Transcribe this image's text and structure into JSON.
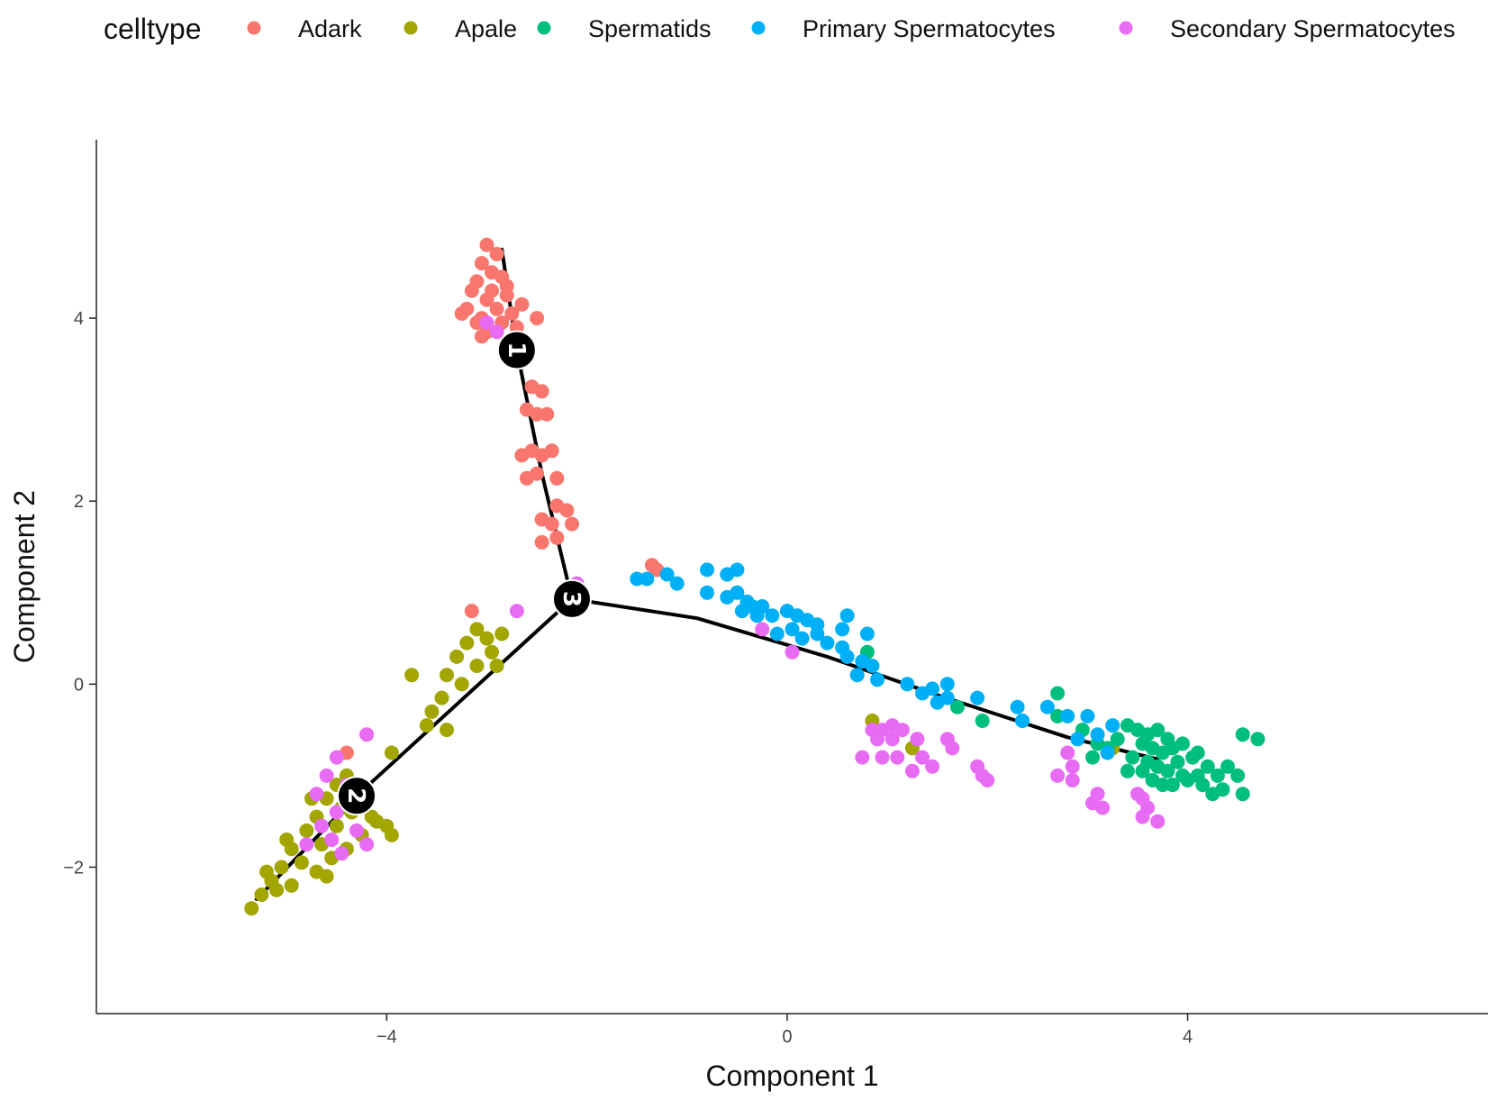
{
  "chart_data": {
    "type": "scatter",
    "title": "",
    "xlabel": "Component 1",
    "ylabel": "Component 2",
    "xlim": [
      -6.9,
      7.0
    ],
    "ylim": [
      -3.6,
      5.95
    ],
    "xticks": [
      -4,
      0,
      4
    ],
    "yticks": [
      -2,
      0,
      2,
      4
    ],
    "xtick_labels": [
      "−4",
      "0",
      "4"
    ],
    "ytick_labels": [
      "−2",
      "0",
      "2",
      "4"
    ],
    "grid": false,
    "legend": {
      "title": "celltype",
      "position": "top",
      "entries": [
        "Adark",
        "Apale",
        "Spermatids",
        "Primary Spermatocytes",
        "Secondary Spermatocytes"
      ]
    },
    "colors": {
      "Adark": "#F8766D",
      "Apale": "#A3A500",
      "Spermatids": "#00BF7D",
      "Primary Spermatocytes": "#00B0F6",
      "Secondary Spermatocytes": "#E76BF3"
    },
    "trajectory": {
      "nodes": [
        {
          "label": "1",
          "x": -2.7,
          "y": 3.65
        },
        {
          "label": "2",
          "x": -4.3,
          "y": -1.22
        },
        {
          "label": "3",
          "x": -2.15,
          "y": 0.93
        }
      ],
      "branches": [
        [
          [
            -2.85,
            4.75
          ],
          [
            -2.7,
            3.65
          ],
          [
            -2.45,
            2.3
          ],
          [
            -2.15,
            0.93
          ]
        ],
        [
          [
            -5.3,
            -2.35
          ],
          [
            -4.3,
            -1.22
          ],
          [
            -2.15,
            0.93
          ]
        ],
        [
          [
            -2.15,
            0.93
          ],
          [
            -0.9,
            0.72
          ],
          [
            0.4,
            0.3
          ],
          [
            1.5,
            -0.12
          ],
          [
            2.8,
            -0.58
          ],
          [
            3.7,
            -0.82
          ]
        ]
      ]
    },
    "series": [
      {
        "name": "Adark",
        "points": [
          [
            -3.0,
            4.8
          ],
          [
            -2.9,
            4.7
          ],
          [
            -3.05,
            4.6
          ],
          [
            -2.95,
            4.5
          ],
          [
            -3.1,
            4.4
          ],
          [
            -2.85,
            4.45
          ],
          [
            -3.15,
            4.3
          ],
          [
            -2.95,
            4.3
          ],
          [
            -3.0,
            4.2
          ],
          [
            -2.8,
            4.25
          ],
          [
            -3.2,
            4.1
          ],
          [
            -2.9,
            4.1
          ],
          [
            -2.75,
            4.05
          ],
          [
            -3.05,
            4.0
          ],
          [
            -2.65,
            4.15
          ],
          [
            -3.1,
            3.95
          ],
          [
            -2.85,
            3.95
          ],
          [
            -3.0,
            3.85
          ],
          [
            -2.7,
            3.9
          ],
          [
            -2.5,
            4.0
          ],
          [
            -3.25,
            4.05
          ],
          [
            -2.8,
            4.35
          ],
          [
            -3.05,
            3.8
          ],
          [
            -2.55,
            3.25
          ],
          [
            -2.45,
            3.2
          ],
          [
            -2.6,
            3.0
          ],
          [
            -2.5,
            2.95
          ],
          [
            -2.4,
            2.95
          ],
          [
            -2.55,
            2.55
          ],
          [
            -2.45,
            2.5
          ],
          [
            -2.65,
            2.5
          ],
          [
            -2.35,
            2.55
          ],
          [
            -2.5,
            2.3
          ],
          [
            -2.3,
            2.25
          ],
          [
            -2.6,
            2.25
          ],
          [
            -2.3,
            1.95
          ],
          [
            -2.2,
            1.9
          ],
          [
            -2.45,
            1.8
          ],
          [
            -2.35,
            1.75
          ],
          [
            -2.15,
            1.75
          ],
          [
            -2.3,
            1.6
          ],
          [
            -2.45,
            1.55
          ],
          [
            -1.3,
            1.25
          ],
          [
            -1.35,
            1.3
          ],
          [
            -3.15,
            0.8
          ],
          [
            -4.4,
            -0.75
          ]
        ]
      },
      {
        "name": "Apale",
        "points": [
          [
            -3.1,
            0.6
          ],
          [
            -3.0,
            0.5
          ],
          [
            -3.2,
            0.45
          ],
          [
            -2.85,
            0.55
          ],
          [
            -2.95,
            0.35
          ],
          [
            -3.1,
            0.2
          ],
          [
            -3.3,
            0.3
          ],
          [
            -2.9,
            0.2
          ],
          [
            -3.4,
            0.1
          ],
          [
            -3.75,
            0.1
          ],
          [
            -3.25,
            0.0
          ],
          [
            -3.45,
            -0.15
          ],
          [
            -3.55,
            -0.3
          ],
          [
            -3.4,
            -0.5
          ],
          [
            -3.6,
            -0.45
          ],
          [
            -3.95,
            -0.75
          ],
          [
            -4.4,
            -1.0
          ],
          [
            -4.5,
            -1.1
          ],
          [
            -4.2,
            -1.2
          ],
          [
            -4.6,
            -1.25
          ],
          [
            -4.35,
            -1.4
          ],
          [
            -4.7,
            -1.45
          ],
          [
            -4.1,
            -1.5
          ],
          [
            -4.5,
            -1.55
          ],
          [
            -4.8,
            -1.6
          ],
          [
            -4.25,
            -1.65
          ],
          [
            -4.65,
            -1.75
          ],
          [
            -4.95,
            -1.8
          ],
          [
            -4.4,
            -1.8
          ],
          [
            -4.85,
            -1.95
          ],
          [
            -5.05,
            -2.0
          ],
          [
            -4.7,
            -2.05
          ],
          [
            -5.15,
            -2.15
          ],
          [
            -4.95,
            -2.2
          ],
          [
            -5.25,
            -2.3
          ],
          [
            -5.35,
            -2.45
          ],
          [
            -5.1,
            -2.25
          ],
          [
            -4.55,
            -1.9
          ],
          [
            -4.15,
            -1.45
          ],
          [
            -4.0,
            -1.55
          ],
          [
            -3.95,
            -1.65
          ],
          [
            -4.75,
            -1.25
          ],
          [
            -5.0,
            -1.7
          ],
          [
            -4.3,
            -1.15
          ],
          [
            -4.6,
            -2.1
          ],
          [
            -5.2,
            -2.05
          ],
          [
            -4.45,
            -1.35
          ],
          [
            0.85,
            -0.4
          ],
          [
            1.25,
            -0.7
          ],
          [
            3.25,
            -0.7
          ]
        ]
      },
      {
        "name": "Spermatids",
        "points": [
          [
            3.4,
            -0.45
          ],
          [
            3.5,
            -0.5
          ],
          [
            3.6,
            -0.55
          ],
          [
            3.7,
            -0.5
          ],
          [
            3.8,
            -0.6
          ],
          [
            3.55,
            -0.65
          ],
          [
            3.65,
            -0.7
          ],
          [
            3.75,
            -0.75
          ],
          [
            3.85,
            -0.7
          ],
          [
            3.45,
            -0.8
          ],
          [
            3.6,
            -0.85
          ],
          [
            3.7,
            -0.9
          ],
          [
            3.8,
            -0.95
          ],
          [
            3.9,
            -0.85
          ],
          [
            3.95,
            -1.0
          ],
          [
            3.55,
            -0.95
          ],
          [
            3.65,
            -1.05
          ],
          [
            3.75,
            -1.1
          ],
          [
            3.85,
            -1.1
          ],
          [
            4.0,
            -1.05
          ],
          [
            4.1,
            -1.0
          ],
          [
            4.2,
            -0.9
          ],
          [
            4.15,
            -1.1
          ],
          [
            4.3,
            -1.0
          ],
          [
            4.35,
            -1.15
          ],
          [
            4.25,
            -1.2
          ],
          [
            4.05,
            -0.8
          ],
          [
            3.4,
            -0.95
          ],
          [
            3.3,
            -0.6
          ],
          [
            3.2,
            -0.7
          ],
          [
            4.55,
            -0.55
          ],
          [
            4.7,
            -0.6
          ],
          [
            4.5,
            -1.0
          ],
          [
            4.55,
            -1.2
          ],
          [
            4.4,
            -0.9
          ],
          [
            3.95,
            -0.65
          ],
          [
            4.1,
            -0.75
          ],
          [
            2.95,
            -0.5
          ],
          [
            3.1,
            -0.65
          ],
          [
            3.05,
            -0.8
          ],
          [
            2.7,
            -0.1
          ],
          [
            2.7,
            -0.35
          ],
          [
            2.35,
            -0.4
          ],
          [
            1.95,
            -0.4
          ],
          [
            1.7,
            -0.25
          ],
          [
            0.8,
            0.35
          ]
        ]
      },
      {
        "name": "Primary Spermatocytes",
        "points": [
          [
            -1.5,
            1.15
          ],
          [
            -1.4,
            1.15
          ],
          [
            -1.2,
            1.2
          ],
          [
            -1.1,
            1.1
          ],
          [
            -0.8,
            1.25
          ],
          [
            -0.6,
            1.2
          ],
          [
            -0.5,
            1.25
          ],
          [
            -0.8,
            1.0
          ],
          [
            -0.6,
            0.95
          ],
          [
            -0.5,
            1.0
          ],
          [
            -0.4,
            0.9
          ],
          [
            -0.45,
            0.8
          ],
          [
            -0.35,
            0.85
          ],
          [
            -0.25,
            0.85
          ],
          [
            -0.15,
            0.75
          ],
          [
            -0.3,
            0.75
          ],
          [
            0.0,
            0.8
          ],
          [
            0.1,
            0.75
          ],
          [
            0.2,
            0.7
          ],
          [
            0.3,
            0.65
          ],
          [
            0.05,
            0.6
          ],
          [
            -0.1,
            0.55
          ],
          [
            0.15,
            0.5
          ],
          [
            0.3,
            0.55
          ],
          [
            0.4,
            0.45
          ],
          [
            0.55,
            0.4
          ],
          [
            0.6,
            0.3
          ],
          [
            0.75,
            0.25
          ],
          [
            0.85,
            0.2
          ],
          [
            0.55,
            0.6
          ],
          [
            0.6,
            0.75
          ],
          [
            0.8,
            0.55
          ],
          [
            0.7,
            0.1
          ],
          [
            0.9,
            0.05
          ],
          [
            1.2,
            0.0
          ],
          [
            1.35,
            -0.1
          ],
          [
            1.45,
            -0.05
          ],
          [
            1.6,
            -0.15
          ],
          [
            1.5,
            -0.2
          ],
          [
            1.6,
            0.0
          ],
          [
            1.9,
            -0.15
          ],
          [
            2.3,
            -0.25
          ],
          [
            2.35,
            -0.4
          ],
          [
            2.6,
            -0.25
          ],
          [
            2.8,
            -0.35
          ],
          [
            2.9,
            -0.6
          ],
          [
            3.0,
            -0.35
          ],
          [
            3.25,
            -0.45
          ],
          [
            3.1,
            -0.55
          ],
          [
            3.2,
            -0.75
          ]
        ]
      },
      {
        "name": "Secondary Spermatocytes",
        "points": [
          [
            -3.0,
            3.95
          ],
          [
            -2.9,
            3.85
          ],
          [
            -2.1,
            1.1
          ],
          [
            -2.7,
            0.8
          ],
          [
            -4.2,
            -0.55
          ],
          [
            -4.5,
            -0.8
          ],
          [
            -4.6,
            -1.0
          ],
          [
            -4.4,
            -1.1
          ],
          [
            -4.7,
            -1.2
          ],
          [
            -4.5,
            -1.4
          ],
          [
            -4.3,
            -1.6
          ],
          [
            -4.65,
            -1.55
          ],
          [
            -4.45,
            -1.85
          ],
          [
            -4.8,
            -1.75
          ],
          [
            -4.2,
            -1.75
          ],
          [
            -4.55,
            -1.7
          ],
          [
            -0.25,
            0.6
          ],
          [
            0.05,
            0.35
          ],
          [
            0.85,
            -0.5
          ],
          [
            0.95,
            -0.5
          ],
          [
            1.05,
            -0.45
          ],
          [
            1.15,
            -0.5
          ],
          [
            0.9,
            -0.6
          ],
          [
            1.05,
            -0.6
          ],
          [
            1.3,
            -0.6
          ],
          [
            0.75,
            -0.8
          ],
          [
            0.95,
            -0.8
          ],
          [
            1.1,
            -0.8
          ],
          [
            1.35,
            -0.8
          ],
          [
            1.25,
            -0.95
          ],
          [
            1.45,
            -0.9
          ],
          [
            1.6,
            -0.6
          ],
          [
            1.65,
            -0.7
          ],
          [
            1.9,
            -0.9
          ],
          [
            1.95,
            -1.0
          ],
          [
            2.0,
            -1.05
          ],
          [
            2.8,
            -0.75
          ],
          [
            2.85,
            -0.9
          ],
          [
            2.7,
            -1.0
          ],
          [
            2.85,
            -1.05
          ],
          [
            3.1,
            -1.2
          ],
          [
            3.05,
            -1.3
          ],
          [
            3.15,
            -1.35
          ],
          [
            3.5,
            -1.2
          ],
          [
            3.55,
            -1.25
          ],
          [
            3.6,
            -1.35
          ],
          [
            3.55,
            -1.45
          ],
          [
            3.7,
            -1.5
          ]
        ]
      }
    ]
  }
}
